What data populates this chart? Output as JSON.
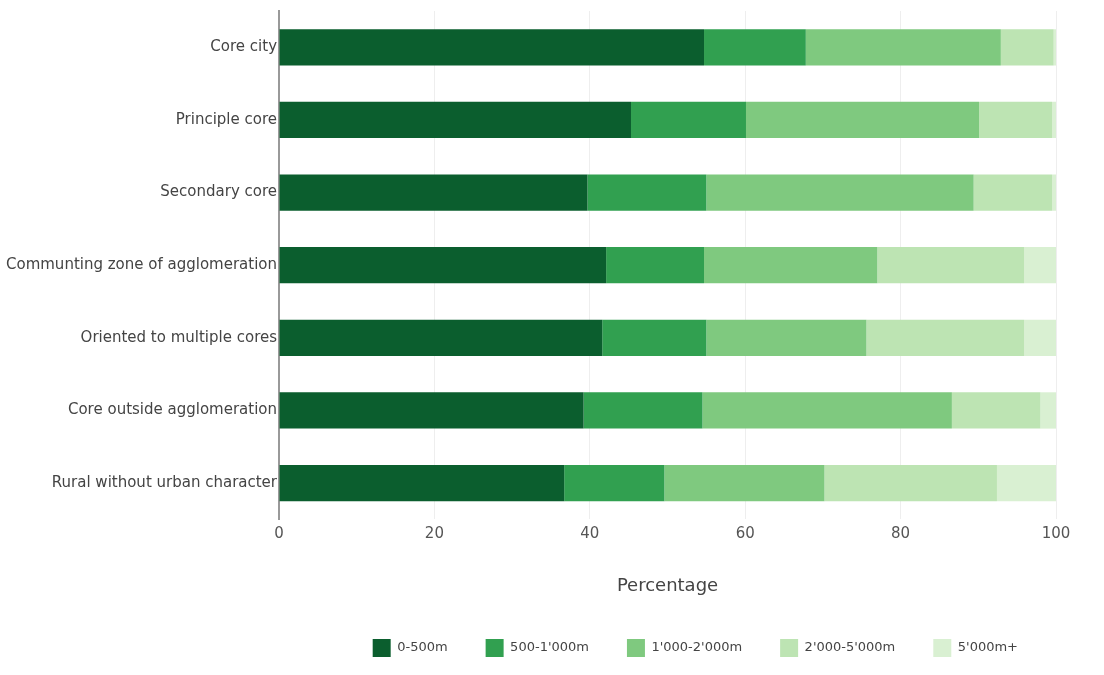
{
  "chart_data": {
    "type": "bar",
    "orientation": "horizontal",
    "stacked": true,
    "xlabel": "Percentage",
    "categories": [
      "Core city",
      "Principle core",
      "Secondary core",
      "Communting zone of agglomeration",
      "Oriented to multiple cores",
      "Core outside agglomeration",
      "Rural without urban character"
    ],
    "series": [
      {
        "name": "0-500m",
        "color": "#0b5e2e",
        "values": [
          54.7,
          45.3,
          39.7,
          42.1,
          41.6,
          39.2,
          36.7
        ]
      },
      {
        "name": "500-1'000m",
        "color": "#31a050",
        "values": [
          13.1,
          14.8,
          15.3,
          12.6,
          13.4,
          15.3,
          12.9
        ]
      },
      {
        "name": "1'000-2'000m",
        "color": "#7fc97f",
        "values": [
          25.1,
          30.0,
          34.4,
          22.3,
          20.6,
          32.1,
          20.6
        ]
      },
      {
        "name": "2'000-5'000m",
        "color": "#bde4b3",
        "values": [
          6.8,
          9.4,
          10.1,
          18.9,
          20.3,
          11.4,
          22.2
        ]
      },
      {
        "name": "5'000m+",
        "color": "#d9f0d2",
        "values": [
          0.3,
          0.5,
          0.5,
          4.1,
          4.1,
          2.0,
          7.6
        ]
      }
    ],
    "xlim": [
      0,
      100
    ],
    "xticks": [
      0,
      20,
      40,
      60,
      80,
      100
    ],
    "grid": "x",
    "legend": "bottom"
  }
}
